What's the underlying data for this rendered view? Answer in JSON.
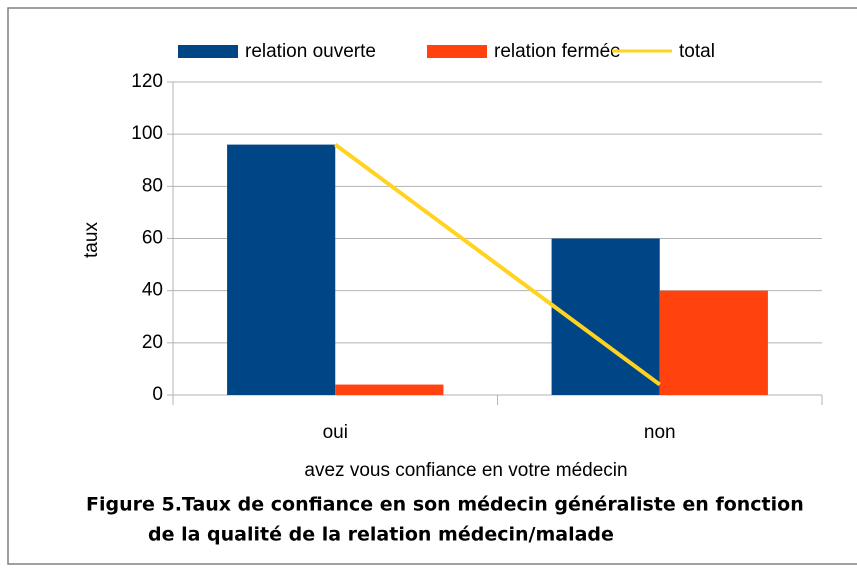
{
  "chart_data": {
    "type": "bar",
    "categories": [
      "oui",
      "non"
    ],
    "series": [
      {
        "name": "relation ouverte",
        "color": "#004586",
        "values": [
          96,
          60
        ]
      },
      {
        "name": "relation fermée",
        "color": "#ff420e",
        "values": [
          4,
          40
        ]
      },
      {
        "name": "total",
        "color": "#ffd320",
        "type": "line",
        "values": [
          96,
          4
        ]
      }
    ],
    "ylim": [
      0,
      120
    ],
    "yticks": [
      0,
      20,
      40,
      60,
      80,
      100,
      120
    ],
    "grid": true,
    "y_label": "taux",
    "x_label": "avez vous confiance en votre médecin",
    "legend": "top"
  },
  "caption": [
    "Figure 5.Taux de confiance en son médecin généraliste en fonction",
    "de la qualité de la relation médecin/malade"
  ]
}
